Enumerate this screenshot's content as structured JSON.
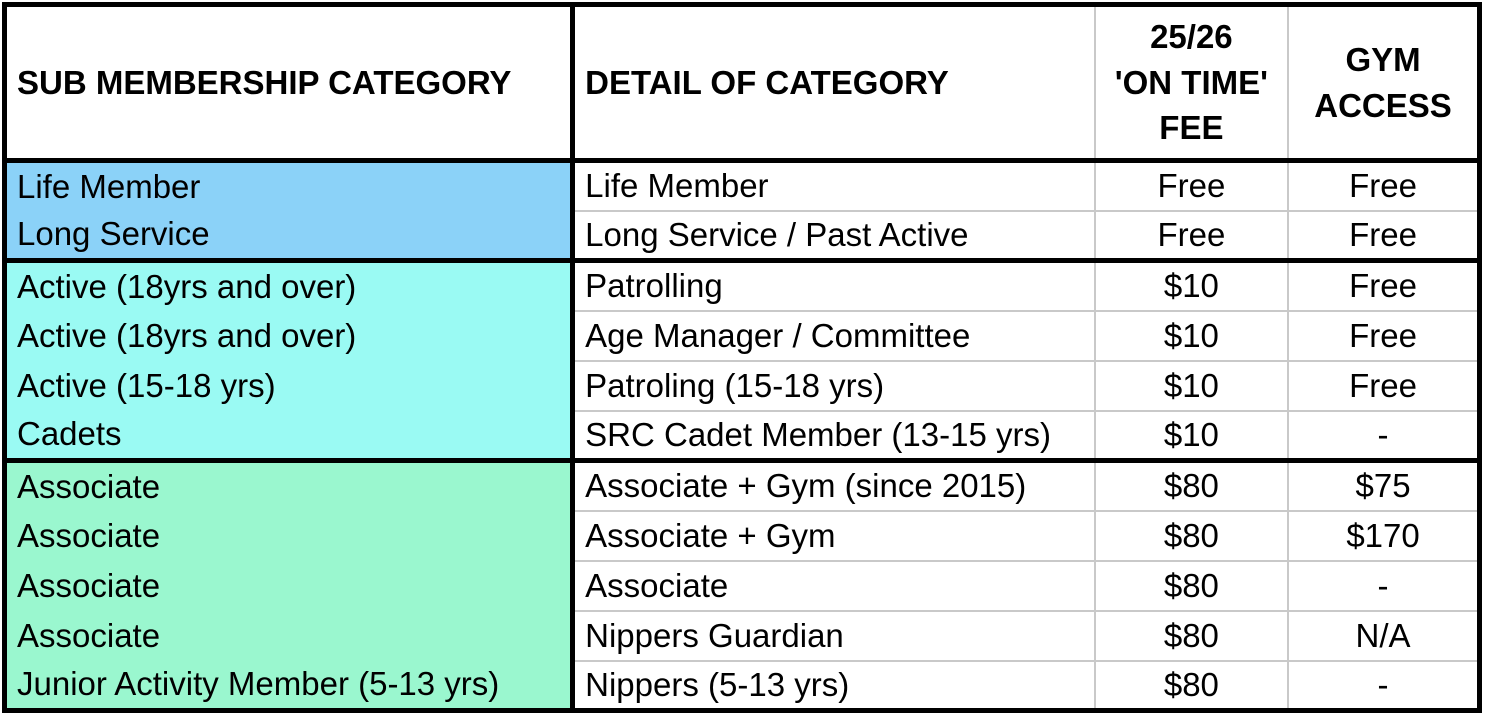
{
  "table": {
    "columns": [
      {
        "label": "SUB MEMBERSHIP CATEGORY",
        "align": "left"
      },
      {
        "label": "DETAIL OF CATEGORY",
        "align": "left"
      },
      {
        "label": "25/26\n'ON TIME'\nFEE",
        "align": "center"
      },
      {
        "label": "GYM\nACCESS",
        "align": "center"
      }
    ],
    "groups": [
      {
        "name": "life-and-long-service",
        "color": "#8bd2f8",
        "rows": [
          {
            "sub_category": "Life Member",
            "detail": "Life Member",
            "fee": "Free",
            "gym": "Free"
          },
          {
            "sub_category": "Long Service",
            "detail": "Long Service / Past Active",
            "fee": "Free",
            "gym": "Free"
          }
        ]
      },
      {
        "name": "active-and-cadets",
        "color": "#9afaf3",
        "rows": [
          {
            "sub_category": "Active (18yrs and over)",
            "detail": "Patrolling",
            "fee": "$10",
            "gym": "Free"
          },
          {
            "sub_category": "Active (18yrs and over)",
            "detail": "Age Manager / Committee",
            "fee": "$10",
            "gym": "Free"
          },
          {
            "sub_category": "Active (15-18 yrs)",
            "detail": "Patroling (15-18 yrs)",
            "fee": "$10",
            "gym": "Free"
          },
          {
            "sub_category": "Cadets",
            "detail": "SRC Cadet Member (13-15 yrs)",
            "fee": "$10",
            "gym": "-"
          }
        ]
      },
      {
        "name": "associate-and-junior",
        "color": "#9af7cf",
        "rows": [
          {
            "sub_category": "Associate",
            "detail": "Associate + Gym (since 2015)",
            "fee": "$80",
            "gym": "$75"
          },
          {
            "sub_category": "Associate",
            "detail": "Associate + Gym",
            "fee": "$80",
            "gym": "$170"
          },
          {
            "sub_category": "Associate",
            "detail": "Associate",
            "fee": "$80",
            "gym": "-"
          },
          {
            "sub_category": "Associate",
            "detail": "Nippers Guardian",
            "fee": "$80",
            "gym": "N/A"
          },
          {
            "sub_category": "Junior Activity Member (5-13 yrs)",
            "detail": "Nippers (5-13 yrs)",
            "fee": "$80",
            "gym": "-"
          }
        ]
      }
    ]
  },
  "colors": {
    "border_black": "#000000",
    "gridline_gray": "#c9c9c9",
    "group_blue": "#8bd2f8",
    "group_cyan": "#9afaf3",
    "group_green": "#9af7cf",
    "text": "#000000",
    "background": "#ffffff"
  }
}
